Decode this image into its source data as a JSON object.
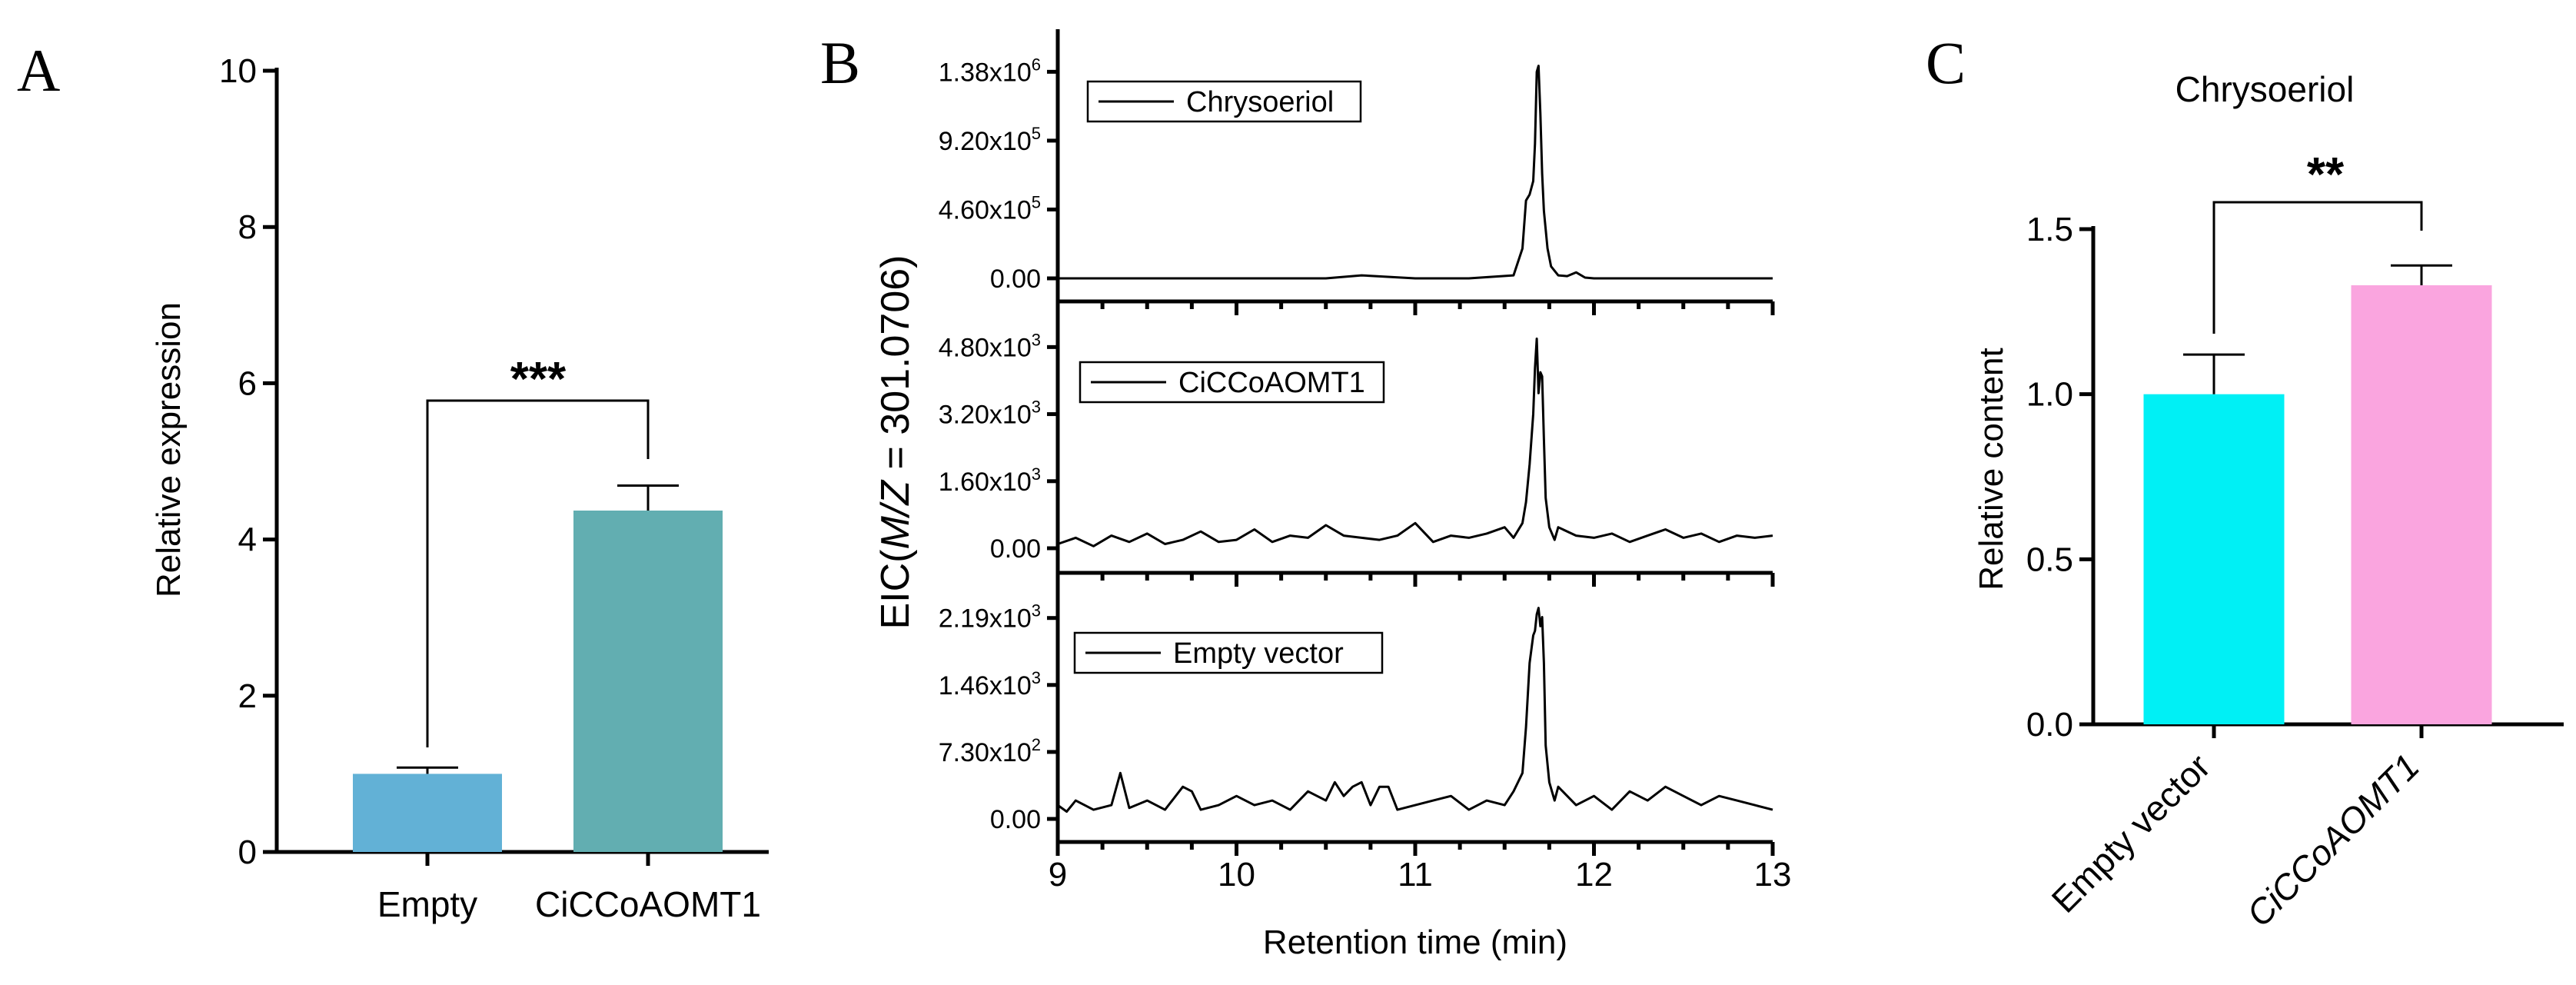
{
  "chart_data": [
    {
      "panel": "A",
      "type": "bar",
      "title": "",
      "categories": [
        "Empty",
        "CiCCoAOMT1"
      ],
      "values": [
        1.0,
        4.37
      ],
      "errors": [
        0.08,
        0.32
      ],
      "colors": [
        "#62b1d6",
        "#62aeb1"
      ],
      "ylabel": "Relative expression",
      "xlabel": "",
      "ylim": [
        0,
        10
      ],
      "yticks": [
        "0",
        "2",
        "4",
        "6",
        "8",
        "10"
      ],
      "significance": "***"
    },
    {
      "panel": "B",
      "type": "line",
      "xlabel": "Retention time (min)",
      "ylabel_prefix": "EIC(",
      "ylabel_italic": "M/Z",
      "ylabel_suffix": " = 301.0706)",
      "xlim": [
        9,
        13
      ],
      "xticks": [
        "9",
        "10",
        "11",
        "12",
        "13"
      ],
      "series": [
        {
          "name": "Chrysoeriol",
          "ymax": 1500000,
          "yticks": [
            {
              "v": 0,
              "m": "0.00",
              "e": ""
            },
            {
              "v": 460000,
              "m": "4.60x10",
              "e": "5"
            },
            {
              "v": 920000,
              "m": "9.20x10",
              "e": "5"
            },
            {
              "v": 1380000,
              "m": "1.38x10",
              "e": "6"
            }
          ],
          "x": [
            9.0,
            9.5,
            10.0,
            10.5,
            10.7,
            11.0,
            11.3,
            11.55,
            11.6,
            11.62,
            11.64,
            11.66,
            11.67,
            11.68,
            11.69,
            11.7,
            11.71,
            11.72,
            11.74,
            11.76,
            11.8,
            11.85,
            11.9,
            11.95,
            12.0,
            12.5,
            13.0
          ],
          "y": [
            0,
            0,
            0,
            0,
            20000,
            0,
            0,
            20000,
            200000,
            520000,
            560000,
            650000,
            900000,
            1380000,
            1420000,
            1100000,
            700000,
            450000,
            200000,
            80000,
            20000,
            15000,
            40000,
            5000,
            0,
            0,
            0
          ]
        },
        {
          "name": "CiCCoAOMT1",
          "ymax": 5100,
          "yticks": [
            {
              "v": 0,
              "m": "0.00",
              "e": ""
            },
            {
              "v": 1600,
              "m": "1.60x10",
              "e": "3"
            },
            {
              "v": 3200,
              "m": "3.20x10",
              "e": "3"
            },
            {
              "v": 4800,
              "m": "4.80x10",
              "e": "3"
            }
          ],
          "x": [
            9.0,
            9.1,
            9.2,
            9.3,
            9.4,
            9.5,
            9.6,
            9.7,
            9.8,
            9.9,
            10.0,
            10.1,
            10.2,
            10.3,
            10.4,
            10.5,
            10.6,
            10.7,
            10.8,
            10.9,
            11.0,
            11.1,
            11.2,
            11.3,
            11.4,
            11.5,
            11.55,
            11.6,
            11.62,
            11.64,
            11.66,
            11.67,
            11.68,
            11.69,
            11.7,
            11.71,
            11.72,
            11.73,
            11.75,
            11.78,
            11.8,
            11.9,
            12.0,
            12.1,
            12.2,
            12.3,
            12.4,
            12.5,
            12.6,
            12.7,
            12.8,
            12.9,
            13.0
          ],
          "y": [
            100,
            250,
            50,
            300,
            150,
            350,
            100,
            200,
            400,
            150,
            200,
            450,
            150,
            300,
            250,
            550,
            300,
            250,
            200,
            300,
            600,
            150,
            300,
            250,
            350,
            500,
            250,
            600,
            1100,
            2000,
            3200,
            4300,
            5000,
            3700,
            4200,
            4100,
            2600,
            1200,
            500,
            200,
            500,
            300,
            250,
            350,
            150,
            300,
            450,
            250,
            350,
            150,
            300,
            250,
            300
          ]
        },
        {
          "name": "Empty vector",
          "ymax": 2330,
          "yticks": [
            {
              "v": 0,
              "m": "0.00",
              "e": ""
            },
            {
              "v": 730,
              "m": "7.30x10",
              "e": "2"
            },
            {
              "v": 1460,
              "m": "1.46x10",
              "e": "3"
            },
            {
              "v": 2190,
              "m": "2.19x10",
              "e": "3"
            }
          ],
          "x": [
            9.0,
            9.05,
            9.1,
            9.2,
            9.3,
            9.35,
            9.4,
            9.5,
            9.6,
            9.7,
            9.75,
            9.8,
            9.9,
            10.0,
            10.1,
            10.2,
            10.3,
            10.4,
            10.5,
            10.55,
            10.6,
            10.65,
            10.7,
            10.75,
            10.8,
            10.85,
            10.9,
            11.0,
            11.1,
            11.2,
            11.3,
            11.4,
            11.5,
            11.55,
            11.6,
            11.62,
            11.64,
            11.66,
            11.67,
            11.68,
            11.69,
            11.7,
            11.71,
            11.72,
            11.73,
            11.75,
            11.78,
            11.8,
            11.9,
            12.0,
            12.1,
            12.2,
            12.3,
            12.4,
            12.5,
            12.6,
            12.7,
            12.8,
            12.9,
            13.0
          ],
          "y": [
            150,
            80,
            200,
            100,
            150,
            500,
            120,
            200,
            100,
            350,
            300,
            100,
            150,
            250,
            150,
            200,
            100,
            300,
            200,
            400,
            250,
            350,
            400,
            150,
            350,
            350,
            100,
            150,
            200,
            250,
            100,
            200,
            150,
            300,
            500,
            1000,
            1700,
            2000,
            2050,
            2230,
            2300,
            2100,
            2200,
            1700,
            800,
            400,
            200,
            350,
            150,
            250,
            100,
            300,
            200,
            350,
            250,
            150,
            250,
            200,
            150,
            100
          ]
        }
      ]
    },
    {
      "panel": "C",
      "type": "bar",
      "title": "Chrysoeriol",
      "categories": [
        "Empty vector",
        "CiCCoAOMT1"
      ],
      "values": [
        1.0,
        1.33
      ],
      "errors": [
        0.12,
        0.06
      ],
      "colors": [
        "#00f0f5",
        "#faa5df"
      ],
      "ylabel": "Relative content",
      "xlabel": "",
      "ylim": [
        0,
        1.5
      ],
      "yticks": [
        "0.0",
        "0.5",
        "1.0",
        "1.5"
      ],
      "significance": "**"
    }
  ]
}
